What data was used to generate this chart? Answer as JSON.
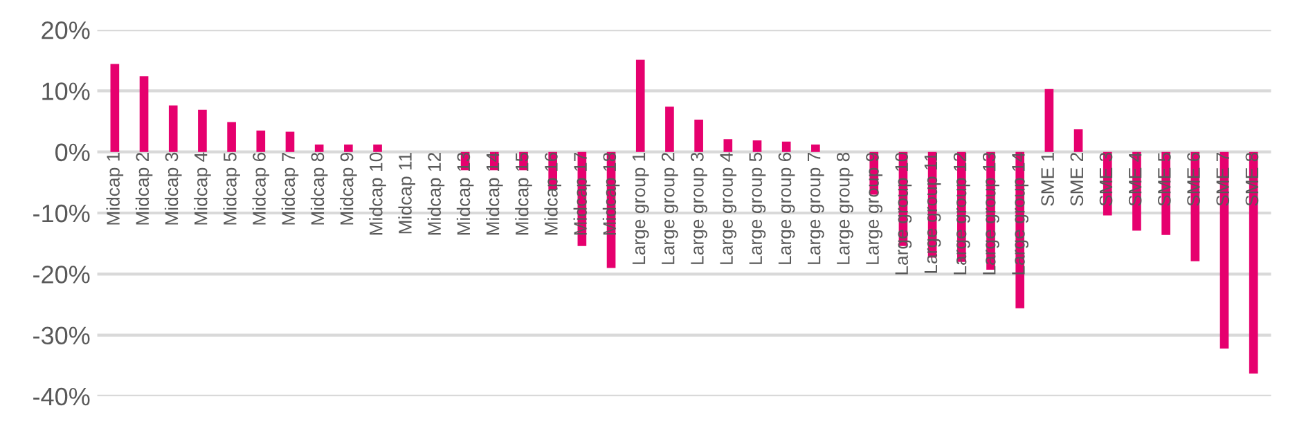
{
  "chart_data": {
    "type": "bar",
    "categories": [
      "Midcap 1",
      "Midcap 2",
      "Midcap 3",
      "Midcap 4",
      "Midcap 5",
      "Midcap 6",
      "Midcap 7",
      "Midcap 8",
      "Midcap 9",
      "Midcap 10",
      "Midcap 11",
      "Midcap 12",
      "Midcap 13",
      "Midcap 14",
      "Midcap 15",
      "Midcap 16",
      "Midcap 17",
      "Midcap 18",
      "Large group 1",
      "Large group 2",
      "Large group 3",
      "Large group 4",
      "Large group 5",
      "Large group 6",
      "Large group 7",
      "Large group 8",
      "Large group 9",
      "Large group 10",
      "Large group 11",
      "Large group 12",
      "Large group 13",
      "Large group 14",
      "SME 1",
      "SME 2",
      "SME 3",
      "SME 4",
      "SME 5",
      "SME 6",
      "SME 7",
      "SME 8"
    ],
    "values": [
      14.4,
      12.4,
      7.6,
      6.9,
      4.9,
      3.5,
      3.3,
      1.2,
      1.2,
      1.2,
      0,
      0,
      -3,
      -3,
      -3,
      -6.2,
      -15.4,
      -19.0,
      15.1,
      7.4,
      5.3,
      2.1,
      1.9,
      1.7,
      1.2,
      0,
      -7.0,
      -15.4,
      -17.3,
      -18.0,
      -19.3,
      -25.6,
      10.3,
      3.7,
      -10.4,
      -12.9,
      -13.6,
      -17.9,
      -32.2,
      -36.3
    ],
    "color": "#e6006e",
    "ylim": [
      -40,
      20
    ],
    "yticks": [
      {
        "value": -40,
        "label": "-40%"
      },
      {
        "value": -30,
        "label": "-30%"
      },
      {
        "value": -20,
        "label": "-20%"
      },
      {
        "value": -10,
        "label": "-10%"
      },
      {
        "value": 0,
        "label": "0%"
      },
      {
        "value": 10,
        "label": "10%"
      },
      {
        "value": 20,
        "label": "20%"
      }
    ],
    "grid": "y"
  }
}
